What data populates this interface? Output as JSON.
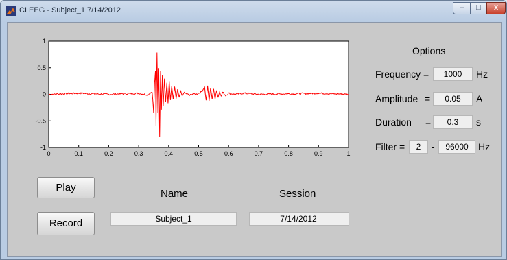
{
  "window": {
    "title": "CI EEG - Subject_1 7/14/2012"
  },
  "caption_buttons": {
    "minimize": "–",
    "maximize": "□",
    "close": "x"
  },
  "options": {
    "heading": "Options",
    "frequency_label": "Frequency =",
    "frequency_value": "1000",
    "frequency_unit": "Hz",
    "amplitude_label": "Amplitude",
    "amplitude_eq": "=",
    "amplitude_value": "0.05",
    "amplitude_unit": "A",
    "duration_label": "Duration",
    "duration_eq": "=",
    "duration_value": "0.3",
    "duration_unit": "s",
    "filter_label": "Filter =",
    "filter_low": "2",
    "filter_sep": "-",
    "filter_high": "96000",
    "filter_unit": "Hz"
  },
  "controls": {
    "play_label": "Play",
    "record_label": "Record"
  },
  "name_field": {
    "label": "Name",
    "value": "Subject_1"
  },
  "session_field": {
    "label": "Session",
    "value": "7/14/2012"
  },
  "colors": {
    "signal": "#ff0000",
    "panel": "#c9c9c9",
    "field": "#efefef"
  },
  "chart_data": {
    "type": "line",
    "xlim": [
      0,
      1
    ],
    "ylim": [
      -1,
      1
    ],
    "xticks": [
      "0",
      "0.1",
      "0.2",
      "0.3",
      "0.4",
      "0.5",
      "0.6",
      "0.7",
      "0.8",
      "0.9",
      "1"
    ],
    "yticks": [
      "1",
      "0.5",
      "0",
      "-0.5",
      "-1"
    ],
    "grid": false,
    "series": [
      {
        "color": "#ff0000",
        "x": [
          0,
          0.1,
          0.2,
          0.3,
          0.33,
          0.345,
          0.35,
          0.353,
          0.356,
          0.358,
          0.361,
          0.364,
          0.367,
          0.37,
          0.373,
          0.376,
          0.379,
          0.382,
          0.386,
          0.39,
          0.394,
          0.398,
          0.402,
          0.406,
          0.41,
          0.415,
          0.42,
          0.425,
          0.43,
          0.435,
          0.44,
          0.445,
          0.45,
          0.46,
          0.47,
          0.48,
          0.49,
          0.5,
          0.51,
          0.52,
          0.525,
          0.53,
          0.535,
          0.54,
          0.545,
          0.55,
          0.555,
          0.56,
          0.565,
          0.57,
          0.575,
          0.58,
          0.59,
          0.6,
          0.62,
          0.65,
          0.7,
          0.8,
          0.9,
          1
        ],
        "y": [
          0,
          0.02,
          0,
          0.02,
          -0.01,
          0.05,
          -0.35,
          0.2,
          0.45,
          -0.6,
          0.78,
          -0.35,
          0.5,
          -0.8,
          0.45,
          -0.3,
          0.37,
          -0.2,
          0.3,
          -0.15,
          0.22,
          -0.18,
          0.25,
          -0.12,
          0.15,
          -0.1,
          0.13,
          -0.08,
          0.09,
          -0.07,
          0.06,
          -0.04,
          0.03,
          0.01,
          -0.02,
          0.01,
          0,
          0.02,
          0.05,
          0.14,
          -0.12,
          0.15,
          -0.12,
          0.13,
          -0.09,
          0.1,
          -0.08,
          0.08,
          -0.06,
          0.06,
          -0.04,
          0.04,
          -0.02,
          0.02,
          0,
          0.02,
          0,
          0.01,
          0.02,
          0
        ]
      }
    ]
  }
}
